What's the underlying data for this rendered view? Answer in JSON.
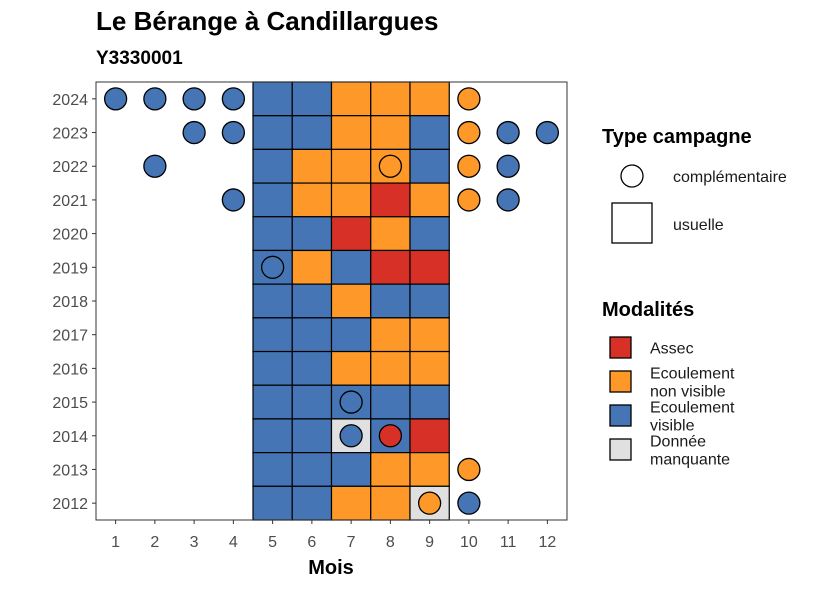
{
  "chart_data": {
    "type": "heatmap",
    "title": "Le Bérange à Candillargues",
    "subtitle": "Y3330001",
    "xlabel": "Mois",
    "ylabel": "",
    "x_ticks": [
      "1",
      "2",
      "3",
      "4",
      "5",
      "6",
      "7",
      "8",
      "9",
      "10",
      "11",
      "12"
    ],
    "y_ticks": [
      "2012",
      "2013",
      "2014",
      "2015",
      "2016",
      "2017",
      "2018",
      "2019",
      "2020",
      "2021",
      "2022",
      "2023",
      "2024"
    ],
    "xlim": [
      0.5,
      12.5
    ],
    "ylim": [
      2011.5,
      2024.5
    ],
    "grid": false,
    "legend_position": "right",
    "colors": {
      "Assec": "#d73027",
      "Ecoulement non visible": "#fe9929",
      "Ecoulement visible": "#4575b4",
      "Donnée manquante": "#e0e0e0"
    },
    "legend_shape": {
      "title": "Type campagne",
      "entries": [
        {
          "label": "complémentaire",
          "shape": "circle"
        },
        {
          "label": "usuelle",
          "shape": "square"
        }
      ]
    },
    "legend_fill": {
      "title": "Modalités",
      "entries": [
        {
          "key": "Assec",
          "lines": [
            "Assec"
          ]
        },
        {
          "key": "Ecoulement non visible",
          "lines": [
            "Ecoulement",
            "non visible"
          ]
        },
        {
          "key": "Ecoulement visible",
          "lines": [
            "Ecoulement",
            "visible"
          ]
        },
        {
          "key": "Donnée manquante",
          "lines": [
            "Donnée",
            "manquante"
          ]
        }
      ]
    },
    "usuelle": [
      {
        "year": 2024,
        "months": [
          "Ecoulement visible",
          "Ecoulement visible",
          "Ecoulement non visible",
          "Ecoulement non visible",
          "Ecoulement non visible"
        ]
      },
      {
        "year": 2023,
        "months": [
          "Ecoulement visible",
          "Ecoulement visible",
          "Ecoulement non visible",
          "Ecoulement non visible",
          "Ecoulement visible"
        ]
      },
      {
        "year": 2022,
        "months": [
          "Ecoulement visible",
          "Ecoulement non visible",
          "Ecoulement non visible",
          "Ecoulement non visible",
          "Ecoulement visible"
        ]
      },
      {
        "year": 2021,
        "months": [
          "Ecoulement visible",
          "Ecoulement non visible",
          "Ecoulement non visible",
          "Assec",
          "Ecoulement non visible"
        ]
      },
      {
        "year": 2020,
        "months": [
          "Ecoulement visible",
          "Ecoulement visible",
          "Assec",
          "Ecoulement non visible",
          "Ecoulement visible"
        ]
      },
      {
        "year": 2019,
        "months": [
          "Ecoulement visible",
          "Ecoulement non visible",
          "Ecoulement visible",
          "Assec",
          "Assec"
        ]
      },
      {
        "year": 2018,
        "months": [
          "Ecoulement visible",
          "Ecoulement visible",
          "Ecoulement non visible",
          "Ecoulement visible",
          "Ecoulement visible"
        ]
      },
      {
        "year": 2017,
        "months": [
          "Ecoulement visible",
          "Ecoulement visible",
          "Ecoulement visible",
          "Ecoulement non visible",
          "Ecoulement non visible"
        ]
      },
      {
        "year": 2016,
        "months": [
          "Ecoulement visible",
          "Ecoulement visible",
          "Ecoulement non visible",
          "Ecoulement non visible",
          "Ecoulement non visible"
        ]
      },
      {
        "year": 2015,
        "months": [
          "Ecoulement visible",
          "Ecoulement visible",
          "Ecoulement visible",
          "Ecoulement visible",
          "Ecoulement visible"
        ]
      },
      {
        "year": 2014,
        "months": [
          "Ecoulement visible",
          "Ecoulement visible",
          "Donnée manquante",
          "Ecoulement visible",
          "Assec"
        ]
      },
      {
        "year": 2013,
        "months": [
          "Ecoulement visible",
          "Ecoulement visible",
          "Ecoulement visible",
          "Ecoulement non visible",
          "Ecoulement non visible"
        ]
      },
      {
        "year": 2012,
        "months": [
          "Ecoulement visible",
          "Ecoulement visible",
          "Ecoulement non visible",
          "Ecoulement non visible",
          "Donnée manquante"
        ]
      }
    ],
    "usuelle_months": [
      5,
      6,
      7,
      8,
      9
    ],
    "complementaire": [
      {
        "year": 2024,
        "month": 1,
        "value": "Ecoulement visible"
      },
      {
        "year": 2024,
        "month": 2,
        "value": "Ecoulement visible"
      },
      {
        "year": 2024,
        "month": 3,
        "value": "Ecoulement visible"
      },
      {
        "year": 2024,
        "month": 4,
        "value": "Ecoulement visible"
      },
      {
        "year": 2024,
        "month": 10,
        "value": "Ecoulement non visible"
      },
      {
        "year": 2023,
        "month": 3,
        "value": "Ecoulement visible"
      },
      {
        "year": 2023,
        "month": 4,
        "value": "Ecoulement visible"
      },
      {
        "year": 2023,
        "month": 10,
        "value": "Ecoulement non visible"
      },
      {
        "year": 2023,
        "month": 11,
        "value": "Ecoulement visible"
      },
      {
        "year": 2023,
        "month": 12,
        "value": "Ecoulement visible"
      },
      {
        "year": 2022,
        "month": 2,
        "value": "Ecoulement visible"
      },
      {
        "year": 2022,
        "month": 8,
        "value": "Ecoulement non visible"
      },
      {
        "year": 2022,
        "month": 10,
        "value": "Ecoulement non visible"
      },
      {
        "year": 2022,
        "month": 11,
        "value": "Ecoulement visible"
      },
      {
        "year": 2021,
        "month": 4,
        "value": "Ecoulement visible"
      },
      {
        "year": 2021,
        "month": 10,
        "value": "Ecoulement non visible"
      },
      {
        "year": 2021,
        "month": 11,
        "value": "Ecoulement visible"
      },
      {
        "year": 2019,
        "month": 5,
        "value": "Ecoulement visible"
      },
      {
        "year": 2015,
        "month": 7,
        "value": "Ecoulement visible"
      },
      {
        "year": 2014,
        "month": 7,
        "value": "Ecoulement visible"
      },
      {
        "year": 2014,
        "month": 8,
        "value": "Assec"
      },
      {
        "year": 2013,
        "month": 10,
        "value": "Ecoulement non visible"
      },
      {
        "year": 2012,
        "month": 9,
        "value": "Ecoulement non visible"
      },
      {
        "year": 2012,
        "month": 10,
        "value": "Ecoulement visible"
      }
    ]
  }
}
